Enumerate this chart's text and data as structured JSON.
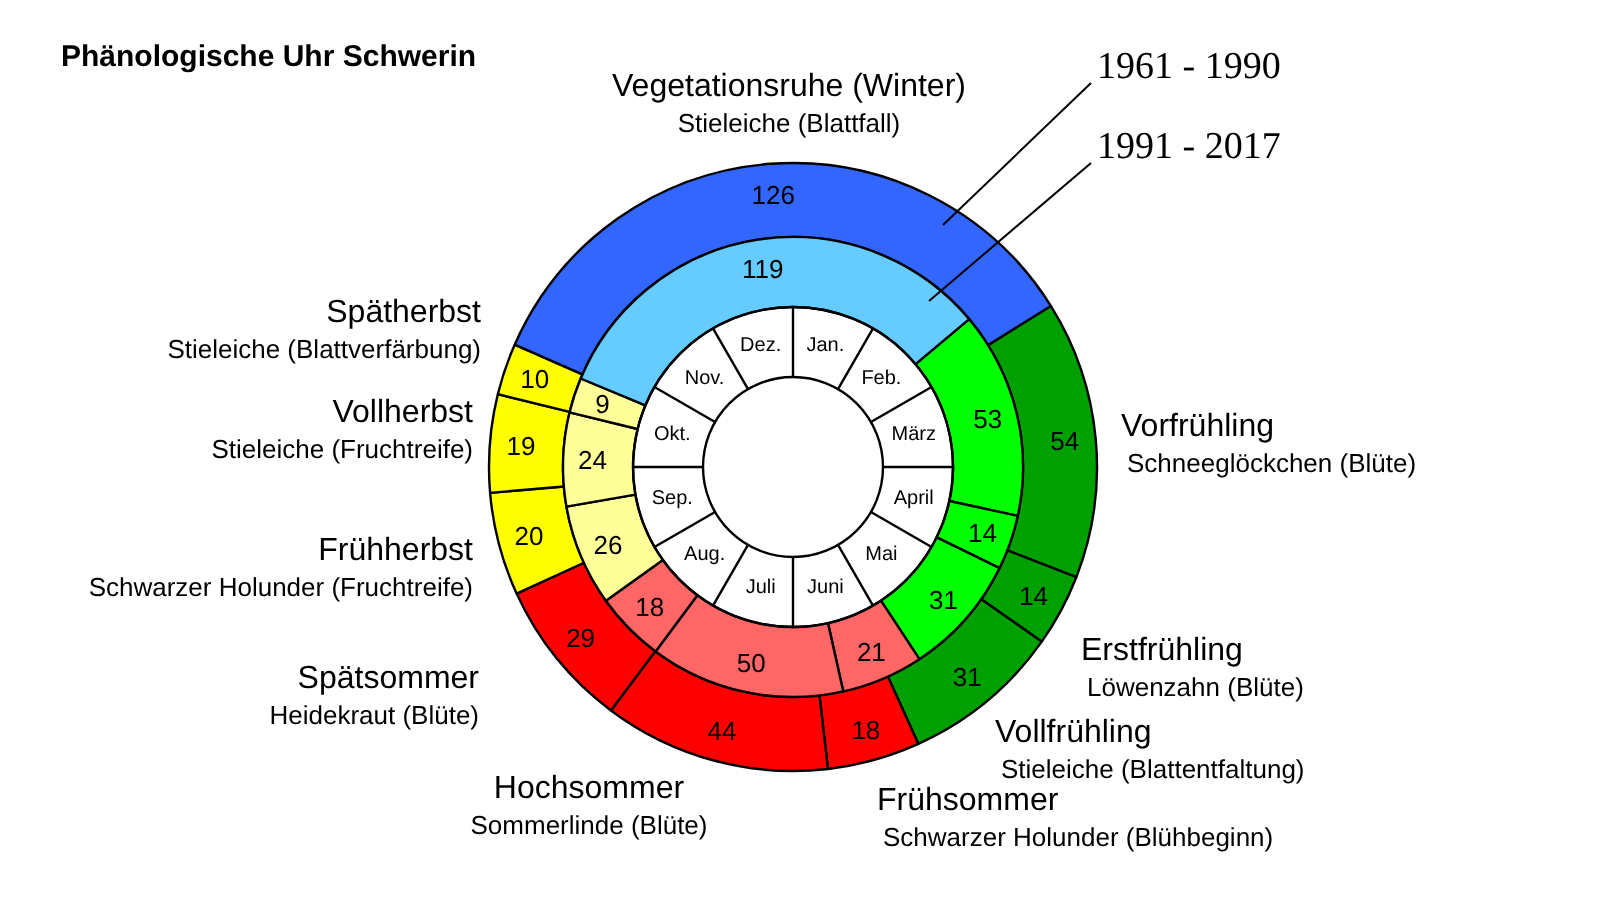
{
  "chart_data": {
    "type": "donut",
    "title": "Phänologische Uhr Schwerin",
    "categories": [
      "Vorfrühling",
      "Erstfrühling",
      "Vollfrühling",
      "Frühsommer",
      "Hochsommer",
      "Spätsommer",
      "Frühherbst",
      "Vollherbst",
      "Spätherbst",
      "Vegetationsruhe (Winter)"
    ],
    "annotations": [
      "Schneeglöckchen (Blüte)",
      "Löwenzahn (Blüte)",
      "Stieleiche (Blattentfaltung)",
      "Schwarzer Holunder (Blühbeginn)",
      "Sommerlinde (Blüte)",
      "Heidekraut (Blüte)",
      "Schwarzer Holunder (Fruchtreife)",
      "Stieleiche (Fruchtreife)",
      "Stieleiche (Blattverfärbung)",
      "Stieleiche (Blattfall)",
      "Jan.",
      "Feb.",
      "März",
      "April",
      "Mai",
      "Juni",
      "Juli",
      "Aug.",
      "Sep.",
      "Okt.",
      "Nov.",
      "Dez."
    ],
    "series": [
      {
        "name": "1961 - 1990",
        "values": [
          54,
          14,
          31,
          18,
          44,
          29,
          20,
          19,
          10,
          126
        ],
        "colors": [
          "#00a000",
          "#00a000",
          "#00a000",
          "#ff0000",
          "#ff0000",
          "#ff0000",
          "#ffff00",
          "#ffff00",
          "#ffff00",
          "#3366ff"
        ]
      },
      {
        "name": "1991 - 2017",
        "values": [
          53,
          14,
          31,
          21,
          50,
          18,
          26,
          24,
          9,
          119
        ],
        "colors": [
          "#00ff00",
          "#00ff00",
          "#00ff00",
          "#ff6666",
          "#ff6666",
          "#ff6666",
          "#ffff99",
          "#ffff99",
          "#ffff99",
          "#66ccff"
        ]
      }
    ],
    "data_labels": true
  }
}
